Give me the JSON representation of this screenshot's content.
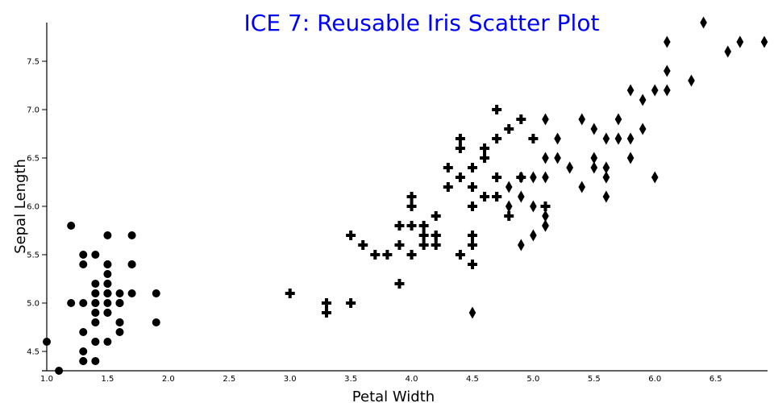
{
  "chart_data": {
    "type": "scatter",
    "title": "ICE 7: Reusable Iris Scatter Plot",
    "xlabel": "Petal Width",
    "ylabel": "Sepal Length",
    "xlim": [
      1.0,
      6.9
    ],
    "ylim": [
      4.3,
      7.9
    ],
    "x_ticks": [
      "1.0",
      "1.5",
      "2.0",
      "2.5",
      "3.0",
      "3.5",
      "4.0",
      "4.5",
      "5.0",
      "5.5",
      "6.0",
      "6.5"
    ],
    "y_ticks": [
      "4.5",
      "5.0",
      "5.5",
      "6.0",
      "6.5",
      "7.0",
      "7.5"
    ],
    "grid": false,
    "title_color": "#0000ff",
    "series": [
      {
        "symbol": "circle",
        "x": [
          1.4,
          1.4,
          1.3,
          1.5,
          1.4,
          1.7,
          1.4,
          1.5,
          1.4,
          1.5,
          1.5,
          1.6,
          1.4,
          1.1,
          1.2,
          1.5,
          1.3,
          1.4,
          1.7,
          1.5,
          1.7,
          1.5,
          1.0,
          1.7,
          1.9,
          1.6,
          1.6,
          1.5,
          1.4,
          1.6,
          1.6,
          1.5,
          1.5,
          1.4,
          1.5,
          1.2,
          1.3,
          1.4,
          1.3,
          1.5,
          1.3,
          1.3,
          1.3,
          1.6,
          1.9,
          1.4,
          1.6,
          1.4,
          1.5,
          1.4
        ],
        "y": [
          5.1,
          4.9,
          4.7,
          4.6,
          5.0,
          5.4,
          4.6,
          5.0,
          4.4,
          4.9,
          5.4,
          4.8,
          4.8,
          4.3,
          5.8,
          5.7,
          5.4,
          5.1,
          5.7,
          5.1,
          5.4,
          5.1,
          4.6,
          5.1,
          4.8,
          5.0,
          5.0,
          5.2,
          5.2,
          4.7,
          4.8,
          5.4,
          5.2,
          5.5,
          4.9,
          5.0,
          5.5,
          4.9,
          4.4,
          5.1,
          5.0,
          4.5,
          4.4,
          5.0,
          5.1,
          4.8,
          5.1,
          4.6,
          5.3,
          5.0
        ]
      },
      {
        "symbol": "cross",
        "x": [
          4.7,
          4.5,
          4.9,
          4.0,
          4.6,
          4.5,
          4.7,
          3.3,
          4.6,
          3.9,
          3.5,
          4.2,
          4.0,
          4.7,
          3.6,
          4.4,
          4.5,
          4.1,
          4.5,
          3.9,
          4.8,
          4.0,
          4.9,
          4.7,
          4.3,
          4.4,
          4.8,
          5.0,
          4.5,
          3.5,
          3.8,
          3.7,
          3.9,
          5.1,
          4.5,
          4.5,
          4.7,
          4.4,
          4.1,
          4.0,
          4.4,
          4.6,
          4.0,
          3.3,
          4.2,
          4.2,
          4.2,
          4.3,
          3.0,
          4.1
        ],
        "y": [
          7.0,
          6.4,
          6.9,
          5.5,
          6.5,
          5.7,
          6.3,
          4.9,
          6.6,
          5.2,
          5.0,
          5.9,
          6.0,
          6.1,
          5.6,
          6.7,
          5.6,
          5.8,
          6.2,
          5.6,
          5.9,
          6.1,
          6.3,
          6.1,
          6.4,
          6.6,
          6.8,
          6.7,
          6.0,
          5.7,
          5.5,
          5.5,
          5.8,
          6.0,
          5.4,
          6.0,
          6.7,
          6.3,
          5.6,
          5.5,
          5.5,
          6.1,
          5.8,
          5.0,
          5.6,
          5.7,
          5.7,
          6.2,
          5.1,
          5.7
        ]
      },
      {
        "symbol": "diamond",
        "x": [
          6.0,
          5.1,
          5.9,
          5.6,
          5.8,
          6.6,
          4.5,
          6.3,
          5.8,
          6.1,
          5.1,
          5.3,
          5.5,
          5.0,
          5.1,
          5.3,
          5.5,
          6.7,
          6.9,
          5.0,
          5.7,
          4.9,
          6.7,
          4.9,
          5.7,
          6.0,
          4.8,
          4.9,
          5.6,
          5.8,
          6.1,
          6.4,
          5.6,
          5.1,
          5.6,
          6.1,
          5.6,
          5.5,
          4.8,
          5.4,
          5.6,
          5.1,
          5.1,
          5.9,
          5.7,
          5.2,
          5.0,
          5.2,
          5.4,
          5.1
        ],
        "y": [
          6.3,
          5.8,
          7.1,
          6.3,
          6.5,
          7.6,
          4.9,
          7.3,
          6.7,
          7.2,
          6.5,
          6.4,
          6.8,
          5.7,
          5.8,
          6.4,
          6.5,
          7.7,
          7.7,
          6.0,
          6.9,
          5.6,
          7.7,
          6.3,
          6.7,
          7.2,
          6.2,
          6.1,
          6.4,
          7.2,
          7.4,
          7.9,
          6.4,
          6.3,
          6.1,
          7.7,
          6.3,
          6.4,
          6.0,
          6.9,
          6.7,
          6.9,
          5.8,
          6.8,
          6.7,
          6.7,
          6.3,
          6.5,
          6.2,
          5.9
        ]
      }
    ]
  }
}
